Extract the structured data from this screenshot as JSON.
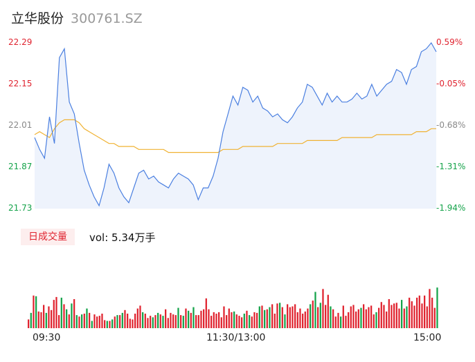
{
  "header": {
    "name": "立华股份",
    "code": "300761.SZ"
  },
  "price_axis": {
    "labels": [
      "22.29",
      "22.15",
      "22.01",
      "21.87",
      "21.73"
    ],
    "pct_labels": [
      "0.59%",
      "-0.05%",
      "-0.68%",
      "-1.31%",
      "-1.94%"
    ],
    "colors": [
      "up",
      "up",
      "mid",
      "down",
      "down"
    ]
  },
  "volume_panel": {
    "badge": "日成交量",
    "summary": "vol: 5.34万手"
  },
  "time_axis": [
    "09:30",
    "11:30/13:00",
    "15:00"
  ],
  "colors": {
    "price_line": "#4a7fe0",
    "avg_line": "#f0b232",
    "up": "#e0232f",
    "down": "#15a34a",
    "area": "#eef3fc"
  },
  "chart_data": [
    {
      "type": "line",
      "y_range": [
        21.73,
        22.29
      ],
      "x_range": [
        "09:30",
        "15:00"
      ],
      "series": [
        {
          "values": [
            21.97,
            21.93,
            21.9,
            22.04,
            21.95,
            22.24,
            22.27,
            22.09,
            22.05,
            21.95,
            21.86,
            21.81,
            21.77,
            21.74,
            21.8,
            21.88,
            21.85,
            21.8,
            21.77,
            21.75,
            21.8,
            21.85,
            21.86,
            21.83,
            21.84,
            21.82,
            21.81,
            21.8,
            21.83,
            21.85,
            21.84,
            21.83,
            21.81,
            21.76,
            21.8,
            21.8,
            21.84,
            21.9,
            21.99,
            22.05,
            22.11,
            22.08,
            22.14,
            22.13,
            22.09,
            22.11,
            22.07,
            22.06,
            22.04,
            22.05,
            22.03,
            22.02,
            22.04,
            22.07,
            22.09,
            22.15,
            22.14,
            22.11,
            22.08,
            22.12,
            22.09,
            22.11,
            22.09,
            22.09,
            22.1,
            22.12,
            22.1,
            22.11,
            22.15,
            22.11,
            22.13,
            22.15,
            22.16,
            22.2,
            22.19,
            22.15,
            22.2,
            22.21,
            22.26,
            22.27,
            22.29,
            22.26
          ]
        },
        {
          "values": [
            21.98,
            21.99,
            21.98,
            21.97,
            22.0,
            22.02,
            22.03,
            22.03,
            22.03,
            22.02,
            22.0,
            21.99,
            21.98,
            21.97,
            21.96,
            21.95,
            21.95,
            21.94,
            21.94,
            21.94,
            21.94,
            21.93,
            21.93,
            21.93,
            21.93,
            21.93,
            21.93,
            21.92,
            21.92,
            21.92,
            21.92,
            21.92,
            21.92,
            21.92,
            21.92,
            21.92,
            21.92,
            21.92,
            21.93,
            21.93,
            21.93,
            21.93,
            21.94,
            21.94,
            21.94,
            21.94,
            21.94,
            21.94,
            21.94,
            21.95,
            21.95,
            21.95,
            21.95,
            21.95,
            21.95,
            21.96,
            21.96,
            21.96,
            21.96,
            21.96,
            21.96,
            21.96,
            21.97,
            21.97,
            21.97,
            21.97,
            21.97,
            21.97,
            21.97,
            21.98,
            21.98,
            21.98,
            21.98,
            21.98,
            21.98,
            21.98,
            21.98,
            21.99,
            21.99,
            21.99,
            22.0,
            22.0
          ]
        }
      ]
    },
    {
      "type": "bar",
      "values": [
        12,
        21,
        45,
        44,
        23,
        22,
        32,
        21,
        30,
        25,
        39,
        43,
        18,
        42,
        33,
        26,
        19,
        34,
        40,
        18,
        16,
        19,
        20,
        27,
        21,
        10,
        19,
        16,
        17,
        20,
        11,
        10,
        10,
        12,
        16,
        18,
        18,
        21,
        25,
        20,
        13,
        12,
        20,
        27,
        31,
        22,
        20,
        14,
        17,
        15,
        18,
        21,
        19,
        17,
        26,
        14,
        21,
        19,
        18,
        28,
        18,
        17,
        27,
        24,
        21,
        29,
        18,
        18,
        24,
        26,
        41,
        26,
        17,
        22,
        20,
        22,
        15,
        30,
        18,
        27,
        22,
        23,
        19,
        17,
        15,
        20,
        24,
        18,
        16,
        22,
        21,
        30,
        31,
        25,
        26,
        29,
        33,
        20,
        34,
        35,
        29,
        19,
        33,
        29,
        30,
        33,
        22,
        27,
        20,
        23,
        27,
        33,
        38,
        50,
        29,
        35,
        54,
        32,
        46,
        30,
        26,
        16,
        21,
        16,
        31,
        17,
        22,
        30,
        32,
        23,
        26,
        28,
        33,
        26,
        29,
        31,
        19,
        22,
        28,
        36,
        32,
        23,
        40,
        32,
        34,
        35,
        27,
        39,
        27,
        30,
        42,
        37,
        31,
        42,
        45,
        34,
        45,
        30,
        54,
        42,
        28,
        56
      ],
      "ylim": [
        0,
        100
      ]
    }
  ]
}
